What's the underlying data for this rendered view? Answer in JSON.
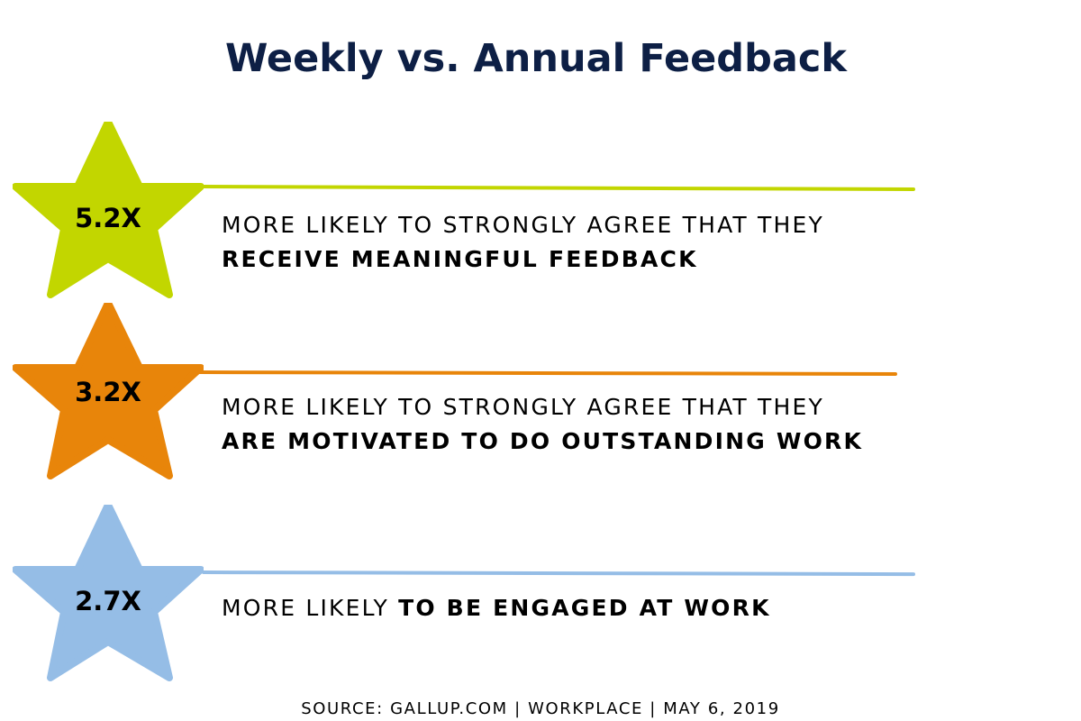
{
  "title": "Weekly vs. Annual Feedback",
  "source": "SOURCE: GALLUP.COM | WORKPLACE | MAY 6, 2019",
  "chart_data": {
    "type": "table",
    "title": "Weekly vs. Annual Feedback",
    "rows": [
      {
        "value": "5.2X",
        "multiplier": 5.2,
        "line1": "MORE LIKELY TO STRONGLY AGREE THAT THEY",
        "line2_regular": "",
        "line2_bold": "RECEIVE MEANINGFUL FEEDBACK",
        "color": "#c2d600"
      },
      {
        "value": "3.2X",
        "multiplier": 3.2,
        "line1": "MORE LIKELY TO STRONGLY AGREE THAT THEY",
        "line2_regular": "",
        "line2_bold": "ARE MOTIVATED TO DO OUTSTANDING WORK",
        "color": "#e8850a"
      },
      {
        "value": "2.7X",
        "multiplier": 2.7,
        "line1": "",
        "line2_regular": "MORE LIKELY ",
        "line2_bold": "TO BE ENGAGED AT WORK",
        "color": "#95bde6"
      }
    ]
  }
}
